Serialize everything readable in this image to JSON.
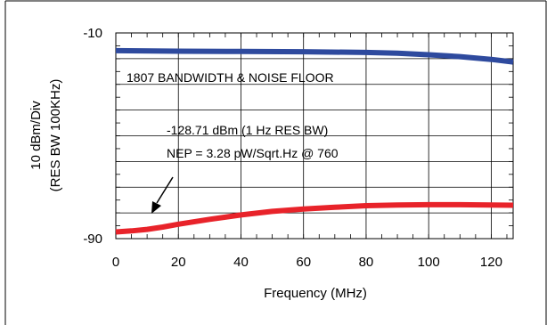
{
  "chart_data": {
    "type": "line",
    "title": "1807 BANDWIDTH & NOISE FLOOR",
    "xlabel": "Frequency (MHz)",
    "ylabel_lines": [
      "10 dBm/Div",
      "(RES BW 100KHz)"
    ],
    "xlim": [
      0,
      127
    ],
    "ylim": [
      -90,
      -10
    ],
    "x_ticks": [
      0,
      20,
      40,
      60,
      80,
      100,
      120
    ],
    "y_tick_labels": [
      "-10",
      "-90"
    ],
    "grid": true,
    "series": [
      {
        "color": "#2e4a9e",
        "x": [
          0,
          20,
          40,
          60,
          80,
          90,
          100,
          110,
          120,
          127
        ],
        "y": [
          -16.9,
          -17.1,
          -17.2,
          -17.3,
          -17.6,
          -17.9,
          -18.5,
          -19.2,
          -20.3,
          -21.3
        ]
      },
      {
        "color": "#e8232a",
        "x": [
          0,
          5,
          10,
          15,
          20,
          30,
          40,
          50,
          60,
          70,
          80,
          90,
          100,
          110,
          120,
          127
        ],
        "y": [
          -87.4,
          -87.0,
          -86.4,
          -85.5,
          -84.4,
          -82.5,
          -80.8,
          -79.4,
          -78.5,
          -77.8,
          -77.2,
          -76.9,
          -76.8,
          -76.8,
          -76.9,
          -77.0
        ]
      }
    ],
    "annotations": [
      "-128.71 dBm (1 Hz RES BW)",
      "NEP = 3.28 pW/Sqrt.Hz @ 760"
    ]
  }
}
